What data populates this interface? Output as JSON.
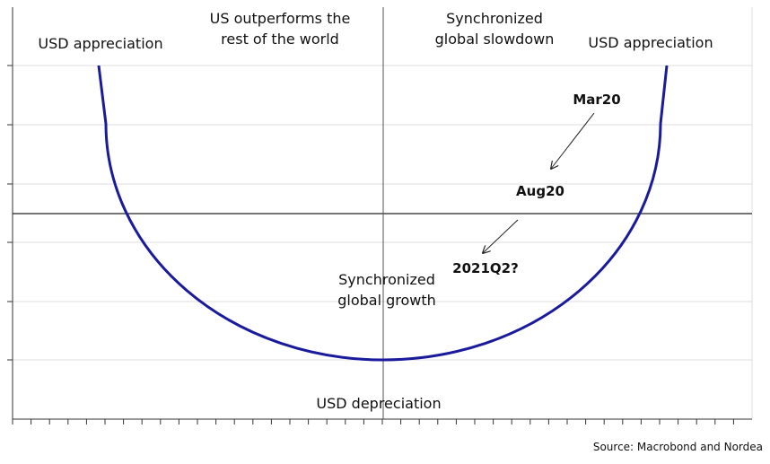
{
  "labels": {
    "left_top": "USD appreciation",
    "left_regime": [
      "US outperforms the",
      "rest of the world"
    ],
    "right_regime": [
      "Synchronized",
      "global slowdown"
    ],
    "right_top": "USD appreciation",
    "bottom_regime": [
      "Synchronized",
      "global growth"
    ],
    "bottom": "USD depreciation"
  },
  "points": [
    {
      "label": "Mar20",
      "color": "#f0605d"
    },
    {
      "label": "Aug20",
      "color": "#f5a623"
    },
    {
      "label": "2021Q2?",
      "color": "#36d12c"
    }
  ],
  "source": "Source: Macrobond and Nordea"
}
